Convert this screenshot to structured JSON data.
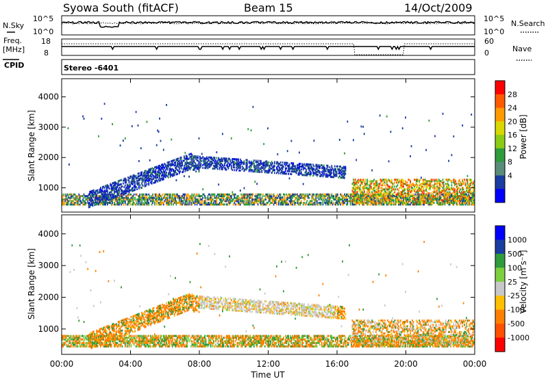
{
  "header": {
    "station": "Syowa South (fitACF)",
    "beam": "Beam 15",
    "date": "14/Oct/2009"
  },
  "params": {
    "nsky_label": "N.Sky",
    "nsearch_label": "N.Search",
    "freq_label_1": "Freq.",
    "freq_label_2": "[MHz]",
    "nave_label": "Nave",
    "cpid_label": "CPID",
    "log_ticks_left": [
      "10^5",
      "10^0"
    ],
    "log_ticks_right": [
      "10^5",
      "10^0"
    ],
    "freq_ticks": [
      "18",
      "8"
    ],
    "nave_ticks": [
      "60",
      "0"
    ],
    "stereo_text": "Stereo -6401"
  },
  "chart_data": [
    {
      "type": "heatmap",
      "panel": "power",
      "ylabel": "Slant Range [km]",
      "xlabel": "",
      "x_tick_labels": [
        "00:00",
        "04:00",
        "08:00",
        "12:00",
        "16:00",
        "20:00",
        "00:00"
      ],
      "y_tick_labels": [
        "1000",
        "2000",
        "3000",
        "4000"
      ],
      "ylim": [
        200,
        4600
      ],
      "xlim_hours": [
        0,
        24
      ],
      "colorbar": {
        "label": "Power [dB]",
        "ticks": [
          "28",
          "24",
          "20",
          "16",
          "12",
          "8",
          "4"
        ],
        "colors": [
          "#ff0000",
          "#ff5a00",
          "#ff9a00",
          "#d8d800",
          "#8ccb14",
          "#2e9b3c",
          "#5a8d7a",
          "#1b3ca0",
          "#0000ff"
        ]
      },
      "features": [
        {
          "name": "main echo band",
          "start_hour": 1.5,
          "end_hour": 16.5,
          "range_km": [
            700,
            2100
          ],
          "power_db": 6
        },
        {
          "name": "near range band",
          "start_hour": 0,
          "end_hour": 24,
          "range_km": [
            400,
            800
          ],
          "power_db": 10
        },
        {
          "name": "evening echoes",
          "start_hour": 17,
          "end_hour": 24,
          "range_km": [
            500,
            1300
          ],
          "power_db": 16
        }
      ]
    },
    {
      "type": "heatmap",
      "panel": "velocity",
      "ylabel": "Slant Range [km]",
      "xlabel": "Time UT",
      "x_tick_labels": [
        "00:00",
        "04:00",
        "08:00",
        "12:00",
        "16:00",
        "20:00",
        "00:00"
      ],
      "y_tick_labels": [
        "1000",
        "2000",
        "3000",
        "4000"
      ],
      "ylim": [
        200,
        4600
      ],
      "xlim_hours": [
        0,
        24
      ],
      "colorbar": {
        "label": "Velocity [m s⁻¹]",
        "ticks": [
          "1000",
          "500",
          "100",
          "25",
          "-25",
          "-100",
          "-500",
          "-1000"
        ],
        "colors": [
          "#0000ff",
          "#1b3ca0",
          "#2e9b3c",
          "#7cd040",
          "#c8c8c8",
          "#ffc000",
          "#ff8000",
          "#ff5000",
          "#ff0000"
        ]
      },
      "features": [
        {
          "name": "main echo band",
          "start_hour": 1.5,
          "end_hour": 16.5,
          "range_km": [
            700,
            2100
          ],
          "velocity_ms": -100
        },
        {
          "name": "midday low velocity",
          "start_hour": 8,
          "end_hour": 16,
          "range_km": [
            1400,
            2000
          ],
          "velocity_ms": 0
        }
      ]
    }
  ]
}
